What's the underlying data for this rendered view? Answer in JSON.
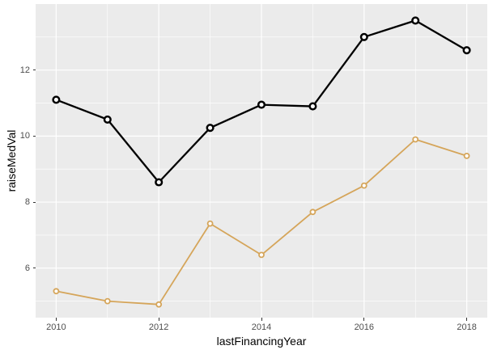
{
  "chart_data": {
    "type": "line",
    "title": "",
    "xlabel": "lastFinancingYear",
    "ylabel": "raiseMedVal",
    "x": [
      2010,
      2011,
      2012,
      2013,
      2014,
      2015,
      2016,
      2017,
      2018
    ],
    "series": [
      {
        "name": "black-series",
        "color": "#000000",
        "line_width": 2.3,
        "marker": "open-circle",
        "marker_radius": 3.8,
        "marker_stroke_width": 2.5,
        "marker_fill": "#FFFFFF",
        "values": [
          11.1,
          10.5,
          8.6,
          10.25,
          10.95,
          10.9,
          13.0,
          13.5,
          12.6
        ]
      },
      {
        "name": "tan-series",
        "color": "#D5A55A",
        "line_width": 1.8,
        "marker": "open-circle",
        "marker_radius": 3.0,
        "marker_stroke_width": 1.8,
        "marker_fill": "#FFFFFF",
        "values": [
          5.3,
          5.0,
          4.9,
          7.35,
          6.4,
          7.7,
          8.5,
          9.9,
          9.4
        ]
      }
    ],
    "x_ticks": [
      2010,
      2012,
      2014,
      2016,
      2018
    ],
    "y_ticks": [
      6,
      8,
      10,
      12
    ],
    "x_minor_gridlines": [
      2011,
      2013,
      2015,
      2017
    ],
    "y_minor_gridlines": [
      5,
      7,
      9,
      11,
      13
    ],
    "xlim": [
      2009.6,
      2018.4
    ],
    "ylim": [
      4.5,
      14.0
    ],
    "legend": "none",
    "grid": "major+minor",
    "panel_background": "#EBEBEB",
    "gridline_color": "#FFFFFF",
    "tick_label_color": "#4D4D4D",
    "axis_title_color": "#000000",
    "tick_mark_color": "#333333"
  }
}
